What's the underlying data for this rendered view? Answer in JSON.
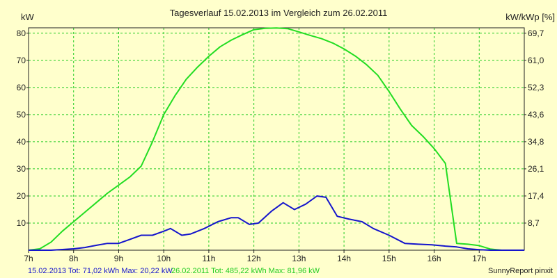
{
  "chart_data": {
    "type": "line",
    "title": "Tagesverlauf 15.02.2013 im Vergleich zum 26.02.2011",
    "ylabel_left": "kW",
    "ylabel_right": "kW/kWp [%]",
    "xlim": [
      7,
      18
    ],
    "ylim": [
      0,
      82
    ],
    "grid": true,
    "x_ticks": [
      7,
      8,
      9,
      10,
      11,
      12,
      13,
      14,
      15,
      16,
      17
    ],
    "x_tick_labels": [
      "7h",
      "8h",
      "9h",
      "10h",
      "11h",
      "12h",
      "13h",
      "14h",
      "15h",
      "16h",
      "17h"
    ],
    "y_ticks": [
      10,
      20,
      30,
      40,
      50,
      60,
      70,
      80
    ],
    "y_tick_labels": [
      "10",
      "20",
      "30",
      "40",
      "50",
      "60",
      "70",
      "80"
    ],
    "y2_ticks": [
      8.7,
      17.4,
      26.1,
      34.8,
      43.6,
      52.3,
      61.0,
      69.7
    ],
    "y2_tick_labels": [
      "8,7",
      "17,4",
      "26,1",
      "34,8",
      "43,6",
      "52,3",
      "61,0",
      "69,7"
    ],
    "series": [
      {
        "name": "26.02.2011",
        "color": "#22dd22",
        "x": [
          7.0,
          7.25,
          7.5,
          7.75,
          8.0,
          8.25,
          8.5,
          8.75,
          9.0,
          9.25,
          9.5,
          9.75,
          10.0,
          10.25,
          10.5,
          10.75,
          11.0,
          11.25,
          11.5,
          11.75,
          12.0,
          12.25,
          12.5,
          12.75,
          13.0,
          13.25,
          13.5,
          13.75,
          14.0,
          14.25,
          14.5,
          14.75,
          15.0,
          15.25,
          15.5,
          15.75,
          16.0,
          16.25,
          16.5,
          16.75,
          17.0,
          17.25,
          17.5,
          18.0
        ],
        "values": [
          0,
          0.5,
          3,
          7,
          10.5,
          14,
          17.5,
          21,
          24,
          27,
          31,
          40,
          50,
          57,
          63,
          67.5,
          71.5,
          75,
          77.5,
          79.5,
          81.3,
          81.8,
          81.96,
          81.7,
          80.5,
          79.2,
          78,
          76.4,
          74.2,
          71.6,
          68.4,
          64.5,
          58.5,
          52,
          46,
          42,
          37.5,
          32,
          2.5,
          2.2,
          1.7,
          0.4,
          0,
          0
        ]
      },
      {
        "name": "15.02.2013",
        "color": "#1515cc",
        "x": [
          7.0,
          7.5,
          8.0,
          8.25,
          8.5,
          8.75,
          9.0,
          9.25,
          9.5,
          9.75,
          10.0,
          10.15,
          10.4,
          10.6,
          10.9,
          11.2,
          11.5,
          11.65,
          11.9,
          12.1,
          12.4,
          12.65,
          12.9,
          13.15,
          13.4,
          13.6,
          13.85,
          14.1,
          14.4,
          14.65,
          15.0,
          15.35,
          15.65,
          15.95,
          16.25,
          16.5,
          16.75,
          17.0,
          17.25,
          17.5,
          18.0
        ],
        "values": [
          0,
          0,
          0.5,
          1,
          1.8,
          2.5,
          2.5,
          4,
          5.5,
          5.5,
          7,
          8,
          5.5,
          6,
          8,
          10.5,
          12,
          12,
          9.5,
          10,
          14.5,
          17.5,
          15,
          17,
          20,
          19.5,
          12.5,
          11.5,
          10.5,
          8,
          5.5,
          2.5,
          2.2,
          2.0,
          1.5,
          1.2,
          0.5,
          0.2,
          0,
          0,
          0
        ]
      }
    ]
  },
  "footer": {
    "legend_2013": "15.02.2013 Tot: 71,02 kWh Max: 20,22 kW",
    "legend_2011": "26.02.2011 Tot: 485,22 kWh Max: 81,96 kW",
    "credit": "SunnyReport pinxit"
  },
  "colors": {
    "background": "#ffffcc",
    "grid": "#22cc22",
    "green_series": "#22dd22",
    "blue_series": "#1515cc",
    "legend_blue": "#1515cc",
    "legend_green": "#22cc22"
  }
}
